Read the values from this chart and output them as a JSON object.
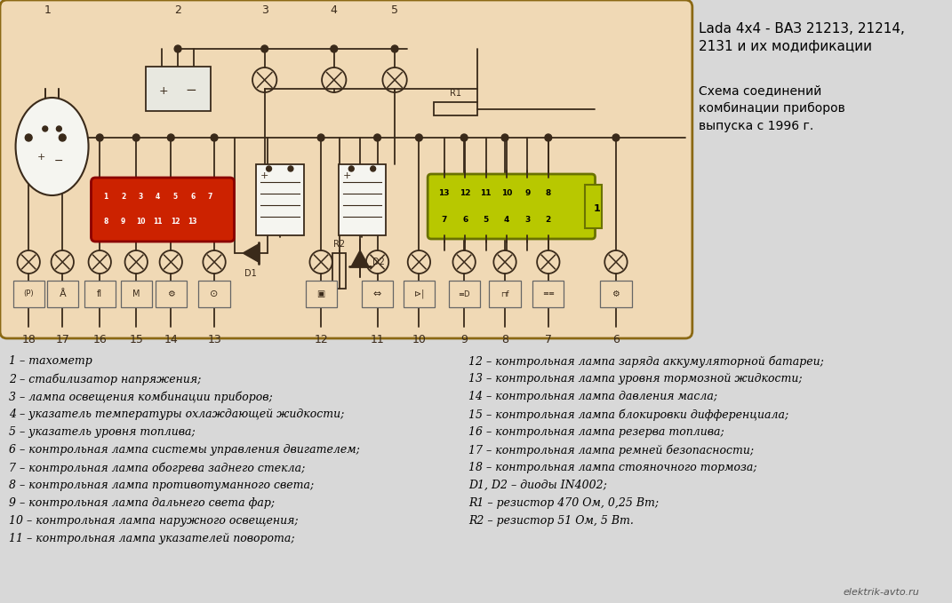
{
  "bg_color": "#f0d9b5",
  "outer_bg": "#d8d8d8",
  "title_lines": [
    "Lada 4x4 - ВАЗ 21213, 21214,",
    "2131 и их модификации"
  ],
  "subtitle_lines": [
    "Схема соединений",
    "комбинации приборов",
    "выпуска с 1996 г."
  ],
  "watermark": "elektrik-avto.ru",
  "left_legend": [
    "1 – тахометр",
    "2 – стабилизатор напряжения;",
    "3 – лампа освещения комбинации приборов;",
    "4 – указатель температуры охлаждающей жидкости;",
    "5 – указатель уровня топлива;",
    "6 – контрольная лампа системы управления двигателем;",
    "7 – контрольная лампа обогрева заднего стекла;",
    "8 – контрольная лампа противотуманного света;",
    "9 – контрольная лампа дальнего света фар;",
    "10 – контрольная лампа наружного освещения;",
    "11 – контрольная лампа указателей поворота;"
  ],
  "right_legend": [
    "12 – контрольная лампа заряда аккумуляторной батареи;",
    "13 – контрольная лампа уровня тормозной жидкости;",
    "14 – контрольная лампа давления масла;",
    "15 – контрольная лампа блокировки дифференциала;",
    "16 – контрольная лампа резерва топлива;",
    "17 – контрольная лампа ремней безопасности;",
    "18 – контрольная лампа стояночного тормоза;",
    "D1, D2 – диоды IN4002;",
    "R1 – резистор 470 Ом, 0,25 Вт;",
    "R2 – резистор 51 Ом, 5 Вт."
  ],
  "wire_color": "#3a2a1a",
  "diagram_border_color": "#8b6914"
}
